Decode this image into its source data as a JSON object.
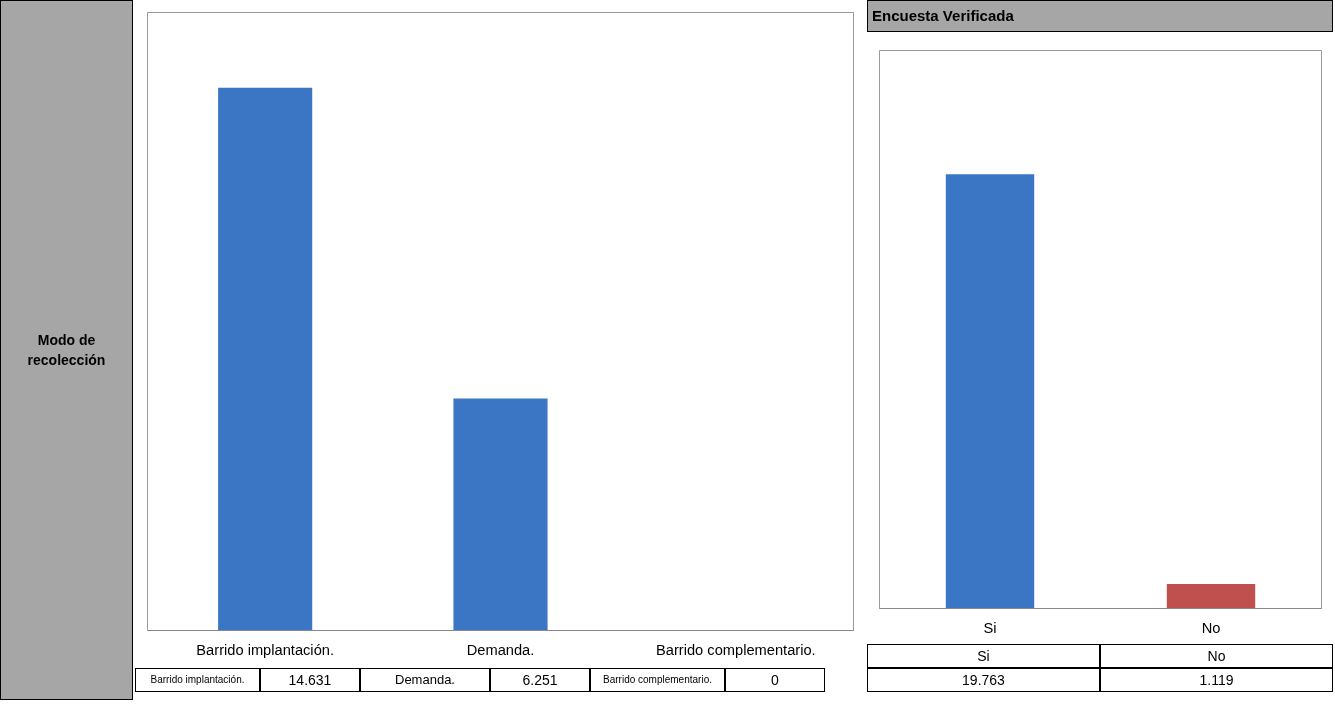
{
  "chart_data": [
    {
      "type": "bar",
      "categories": [
        "Barrido implantación.",
        "Demanda.",
        "Barrido complementario."
      ],
      "values": [
        14631,
        6251,
        0
      ],
      "value_labels": [
        "14.631",
        "6.251",
        "0"
      ],
      "color": "#3a76c4",
      "ylim": [
        0,
        16660
      ],
      "tick_labels": "x",
      "grid": false,
      "annotations": [
        "Modo de recolección"
      ]
    },
    {
      "type": "bar",
      "title": "Encuesta Verificada",
      "categories": [
        "Si",
        "No"
      ],
      "values": [
        19763,
        1119
      ],
      "value_labels": [
        "19.763",
        "1.119"
      ],
      "colors": [
        "#3a76c4",
        "#c0504d"
      ],
      "ylim": [
        0,
        25400
      ],
      "tick_labels": "x",
      "grid": false
    }
  ]
}
